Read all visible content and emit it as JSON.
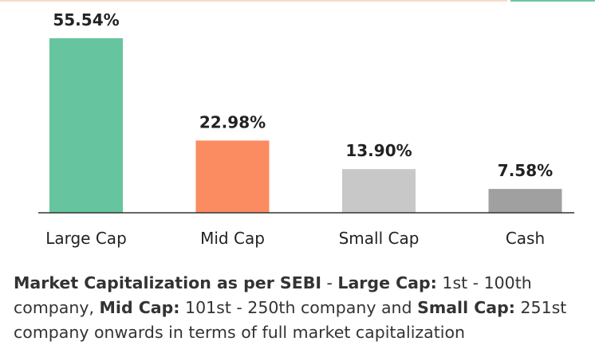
{
  "chart_data": {
    "type": "bar",
    "categories": [
      "Large Cap",
      "Mid Cap",
      "Small Cap",
      "Cash"
    ],
    "values": [
      55.54,
      22.98,
      13.9,
      7.58
    ],
    "value_labels": [
      "55.54%",
      "22.98%",
      "13.90%",
      "7.58%"
    ],
    "colors": [
      "#66c59e",
      "#fb8c62",
      "#c8c8c8",
      "#a0a0a0"
    ],
    "title": "",
    "xlabel": "",
    "ylabel": "",
    "ylim": [
      0,
      55.54
    ],
    "grid": false,
    "legend": "none"
  },
  "caption": {
    "seg1_bold": "Market Capitalization as per SEBI",
    "seg2": " - ",
    "seg3_bold": "Large Cap:",
    "seg4": " 1st - 100th company, ",
    "seg5_bold": "Mid Cap:",
    "seg6": " 101st - 250th company and ",
    "seg7_bold": "Small Cap:",
    "seg8": " 251st company onwards in terms of full market capitalization"
  }
}
